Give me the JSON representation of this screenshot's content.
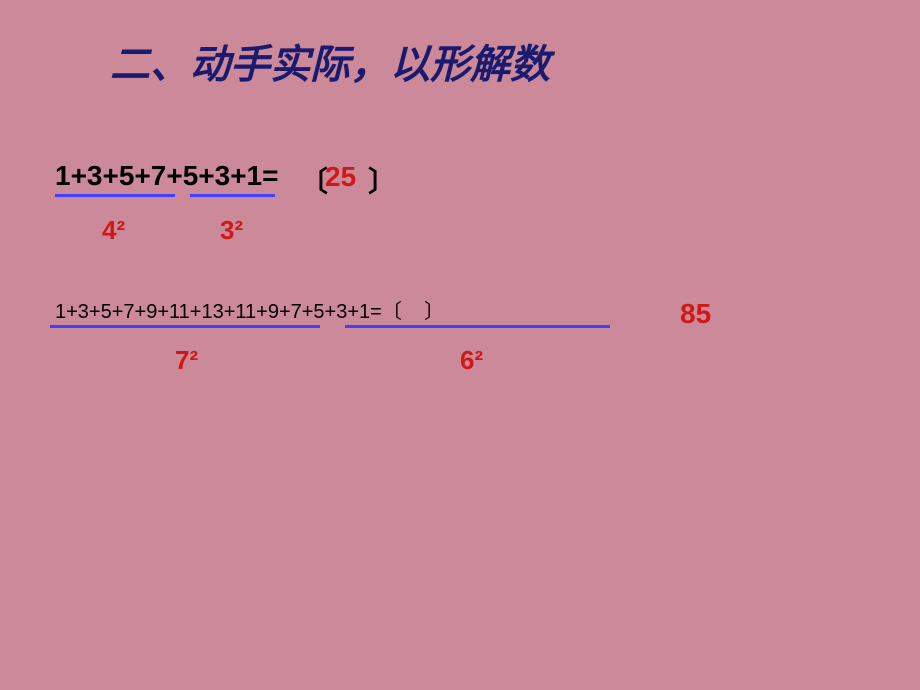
{
  "background_color": "#cc8999",
  "title": {
    "text": "二、动手实际，以形解数",
    "color": "#1a1a6e",
    "fontsize": 40,
    "font_style": "italic bold"
  },
  "problem1": {
    "expression": "1+3+5+7+5+3+1=",
    "paren_open": "〔",
    "paren_close": "〕",
    "answer": "25",
    "answer_color": "#d11818",
    "text_color": "#000000",
    "fontsize": 28,
    "underline_color": "#4040ff",
    "part1_label": "4²",
    "part2_label": "3²",
    "label_color": "#d11818",
    "label_fontsize": 26
  },
  "problem2": {
    "expression": "1+3+5+7+9+11+13+11+9+7+5+3+1=",
    "paren_open": "〔",
    "paren_close": "〕",
    "answer": "85",
    "answer_color": "#d11818",
    "text_color": "#000000",
    "fontsize": 20,
    "underline_color": "#4040ff",
    "part1_label": "7²",
    "part2_label": "6²",
    "label_color": "#d11818",
    "label_fontsize": 26
  }
}
